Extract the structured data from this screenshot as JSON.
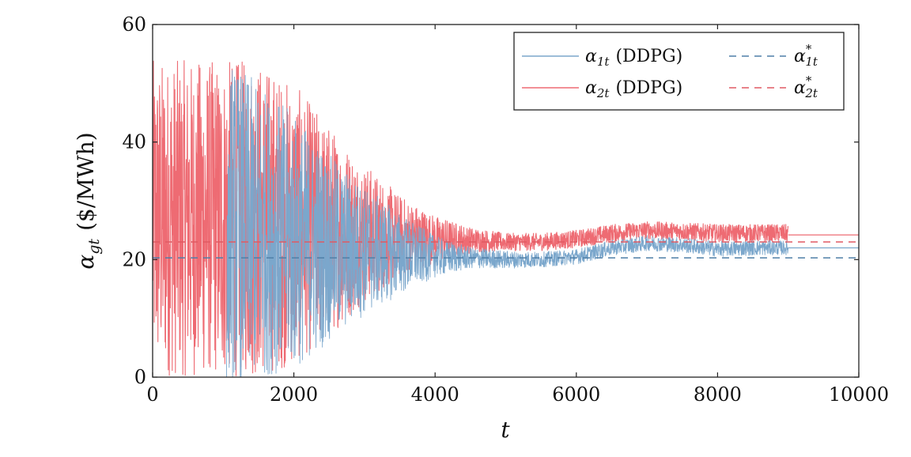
{
  "chart_data": {
    "type": "line",
    "xlabel": "t",
    "ylabel": "α_gt ($/MWh)",
    "ylabel_main": "α",
    "ylabel_sub": "gt",
    "ylabel_unit": "($/MWh)",
    "xlim": [
      0,
      10000
    ],
    "ylim": [
      0,
      60
    ],
    "xticks": [
      "0",
      "2000",
      "4000",
      "6000",
      "8000",
      "10000"
    ],
    "yticks": [
      "0",
      "20",
      "40",
      "60"
    ],
    "grid": false,
    "legend_position": "top-right",
    "series": [
      {
        "name": "α1t (DDPG)",
        "label_main": "α",
        "label_sub": "1t",
        "label_suffix": "(DDPG)",
        "color": "#7ba7cc",
        "style": "solid",
        "x": [
          0,
          1000,
          1100,
          1200,
          1500,
          2000,
          2500,
          3000,
          3500,
          4000,
          4500,
          5000,
          5500,
          6000,
          6500,
          7000,
          7500,
          8000,
          8500,
          9000
        ],
        "center": [
          0,
          0,
          27,
          26,
          25,
          23,
          22,
          21.5,
          21,
          20.5,
          20.3,
          20,
          20,
          20.5,
          22,
          22.8,
          22.5,
          21.8,
          22,
          22
        ],
        "spread": [
          0,
          0,
          27,
          27,
          25,
          22,
          16,
          11,
          7,
          3.5,
          1.8,
          1.5,
          1.3,
          1.3,
          1.3,
          1.3,
          1.3,
          1.3,
          1.3,
          1.2
        ],
        "final_value": 22
      },
      {
        "name": "α2t (DDPG)",
        "label_main": "α",
        "label_sub": "2t",
        "label_suffix": "(DDPG)",
        "color": "#ee6b73",
        "style": "solid",
        "x": [
          0,
          1000,
          1200,
          1500,
          2000,
          2500,
          3000,
          3500,
          4000,
          4500,
          5000,
          5500,
          6000,
          6500,
          7000,
          7500,
          8000,
          8500,
          9000
        ],
        "center": [
          27,
          27,
          27,
          27,
          26,
          25,
          24.5,
          24,
          23.5,
          23.3,
          23,
          23,
          23.5,
          24.5,
          25,
          24.8,
          24.5,
          24.5,
          24.5
        ],
        "spread": [
          27,
          27,
          27,
          27,
          24,
          18,
          12,
          7,
          4,
          2.2,
          1.5,
          1.5,
          1.5,
          1.5,
          1.5,
          1.5,
          1.5,
          1.5,
          1.5
        ],
        "final_value": 24.2
      },
      {
        "name": "α*1t",
        "label_main": "α",
        "label_sup": "*",
        "label_sub": "1t",
        "color": "#4f7fa8",
        "style": "dashed",
        "value": 20.3
      },
      {
        "name": "α*2t",
        "label_main": "α",
        "label_sup": "*",
        "label_sub": "2t",
        "color": "#e05a63",
        "style": "dashed",
        "value": 23
      }
    ]
  }
}
